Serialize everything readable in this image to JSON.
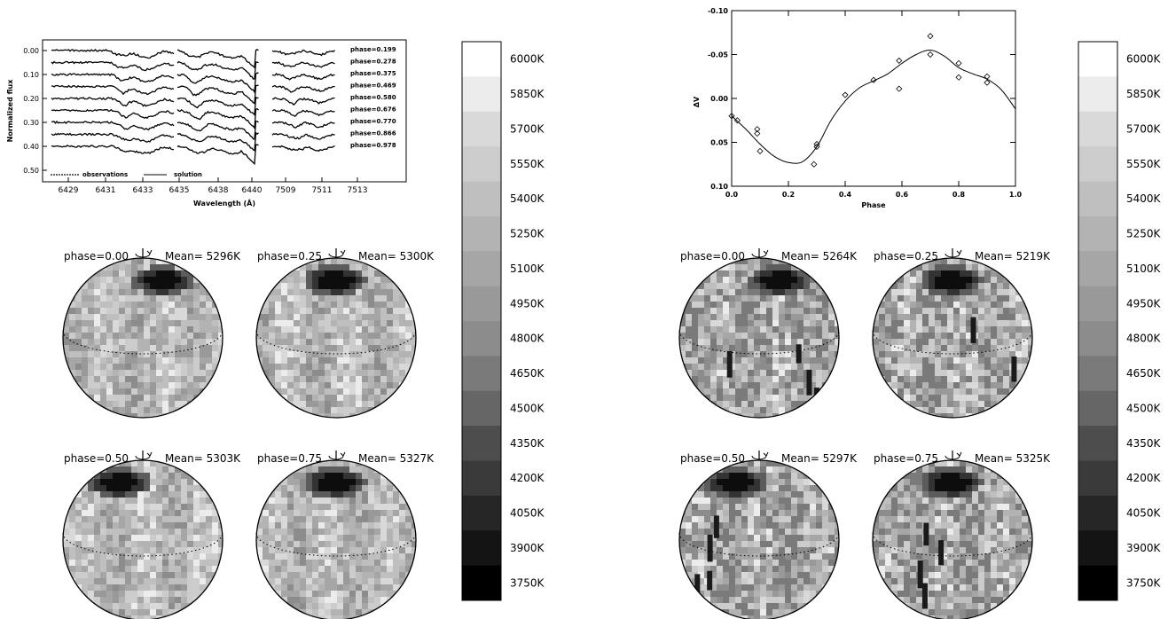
{
  "colorbar": {
    "labels": [
      "6000K",
      "5850K",
      "5700K",
      "5550K",
      "5400K",
      "5250K",
      "5100K",
      "4950K",
      "4800K",
      "4650K",
      "4500K",
      "4350K",
      "4200K",
      "4050K",
      "3900K",
      "3750K"
    ],
    "colors": [
      "#ffffff",
      "#ececec",
      "#d9d9d9",
      "#cccccc",
      "#bfbfbf",
      "#b3b3b3",
      "#a6a6a6",
      "#999999",
      "#8c8c8c",
      "#7a7a7a",
      "#666666",
      "#4d4d4d",
      "#3a3a3a",
      "#262626",
      "#141414",
      "#000000"
    ]
  },
  "left_panel": {
    "spectra": {
      "ylabel": "Normalized flux",
      "xlabel": "Wavelength (Å)",
      "yticks": [
        "0.00",
        "0.10",
        "0.20",
        "0.30",
        "0.40",
        "0.50"
      ],
      "xticks": [
        "6429",
        "6431",
        "6433",
        "6435",
        "6438",
        "6440",
        "7509",
        "7511",
        "7513"
      ],
      "phases": [
        "phase=0.199",
        "phase=0.278",
        "phase=0.375",
        "phase=0.469",
        "phase=0.580",
        "phase=0.676",
        "phase=0.770",
        "phase=0.866",
        "phase=0.978"
      ],
      "legend_observations": "observations",
      "legend_solution": "solution"
    },
    "maps": [
      {
        "phase": "phase=0.00",
        "mean": "Mean=  5296K",
        "spot": 0.0
      },
      {
        "phase": "phase=0.25",
        "mean": "Mean=  5300K",
        "spot": 0.25
      },
      {
        "phase": "phase=0.50",
        "mean": "Mean=  5303K",
        "spot": 0.5
      },
      {
        "phase": "phase=0.75",
        "mean": "Mean=  5327K",
        "spot": 0.75
      }
    ]
  },
  "right_panel": {
    "lightcurve": {
      "ylabel": "ΔV",
      "xlabel": "Phase",
      "yticks": [
        "-0.10",
        "-0.05",
        "0.00",
        "0.05",
        "0.10"
      ],
      "xticks": [
        "0.0",
        "0.2",
        "0.4",
        "0.6",
        "0.8",
        "1.0"
      ]
    },
    "maps": [
      {
        "phase": "phase=0.00",
        "mean": "Mean=  5264K",
        "spot": 0.0
      },
      {
        "phase": "phase=0.25",
        "mean": "Mean=  5219K",
        "spot": 0.25
      },
      {
        "phase": "phase=0.50",
        "mean": "Mean=  5297K",
        "spot": 0.5
      },
      {
        "phase": "phase=0.75",
        "mean": "Mean=  5325K",
        "spot": 0.75
      }
    ]
  },
  "chart_data": [
    {
      "type": "line",
      "xlabel": "Phase",
      "ylabel": "ΔV",
      "xlim": [
        0.0,
        1.0
      ],
      "ylim": [
        0.1,
        -0.1
      ],
      "observations": [
        [
          0.0,
          0.02
        ],
        [
          0.02,
          0.025
        ],
        [
          0.09,
          0.04
        ],
        [
          0.09,
          0.035
        ],
        [
          0.1,
          0.06
        ],
        [
          0.29,
          0.075
        ],
        [
          0.3,
          0.055
        ],
        [
          0.3,
          0.052
        ],
        [
          0.4,
          -0.004
        ],
        [
          0.5,
          -0.021
        ],
        [
          0.59,
          -0.043
        ],
        [
          0.59,
          -0.011
        ],
        [
          0.7,
          -0.071
        ],
        [
          0.7,
          -0.05
        ],
        [
          0.8,
          -0.04
        ],
        [
          0.8,
          -0.024
        ],
        [
          0.9,
          -0.025
        ],
        [
          0.9,
          -0.018
        ]
      ],
      "model": [
        [
          0.0,
          0.02
        ],
        [
          0.05,
          0.035
        ],
        [
          0.1,
          0.052
        ],
        [
          0.15,
          0.066
        ],
        [
          0.2,
          0.073
        ],
        [
          0.25,
          0.072
        ],
        [
          0.3,
          0.055
        ],
        [
          0.35,
          0.025
        ],
        [
          0.4,
          0.003
        ],
        [
          0.45,
          -0.012
        ],
        [
          0.5,
          -0.02
        ],
        [
          0.55,
          -0.028
        ],
        [
          0.6,
          -0.04
        ],
        [
          0.65,
          -0.05
        ],
        [
          0.7,
          -0.055
        ],
        [
          0.75,
          -0.048
        ],
        [
          0.8,
          -0.035
        ],
        [
          0.85,
          -0.028
        ],
        [
          0.9,
          -0.022
        ],
        [
          0.95,
          -0.01
        ],
        [
          1.0,
          0.012
        ]
      ]
    }
  ]
}
